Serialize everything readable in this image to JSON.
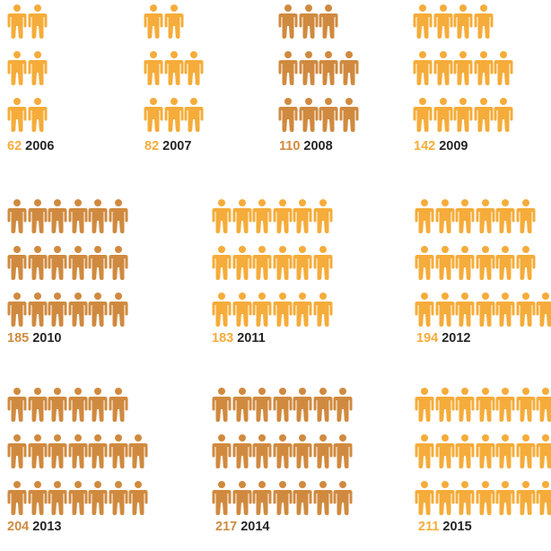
{
  "chart_data": {
    "type": "pictogram",
    "colors": {
      "light": "#F5AC3A",
      "dark": "#D08A3F",
      "year_text": "#262626"
    },
    "icon": "person-icon",
    "items": [
      {
        "value": 62,
        "year": "2006",
        "rows": [
          2,
          2,
          2
        ],
        "color": "light"
      },
      {
        "value": 82,
        "year": "2007",
        "rows": [
          2,
          3,
          3
        ],
        "color": "light"
      },
      {
        "value": 110,
        "year": "2008",
        "rows": [
          3,
          4,
          4
        ],
        "color": "dark"
      },
      {
        "value": 142,
        "year": "2009",
        "rows": [
          4,
          5,
          5
        ],
        "color": "light"
      },
      {
        "value": 185,
        "year": "2010",
        "rows": [
          6,
          6,
          6
        ],
        "color": "dark"
      },
      {
        "value": 183,
        "year": "2011",
        "rows": [
          6,
          6,
          6
        ],
        "color": "light"
      },
      {
        "value": 194,
        "year": "2012",
        "rows": [
          6,
          6,
          7
        ],
        "color": "light"
      },
      {
        "value": 204,
        "year": "2013",
        "rows": [
          6,
          7,
          7
        ],
        "color": "dark"
      },
      {
        "value": 217,
        "year": "2014",
        "rows": [
          7,
          7,
          7
        ],
        "color": "dark"
      },
      {
        "value": 211,
        "year": "2015",
        "rows": [
          7,
          7,
          7
        ],
        "color": "light"
      }
    ]
  }
}
